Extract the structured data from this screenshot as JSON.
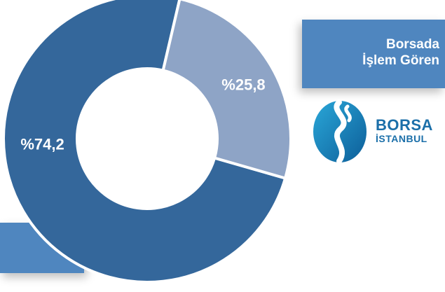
{
  "callout": {
    "text": "Borsada\nİşlem Gören"
  },
  "logo": {
    "line1": "BORSA",
    "line2": "İSTANBUL"
  },
  "colors": {
    "primary": "#34679b",
    "secondary": "#8ea4c6",
    "accent": "#4f86bf",
    "logo": "#1b6fa9"
  },
  "chart_data": {
    "type": "pie",
    "style": "donut",
    "categories": [
      "",
      ""
    ],
    "values": [
      74.2,
      25.8
    ],
    "labels": [
      "%74,2",
      "%25,8"
    ],
    "title": ""
  }
}
